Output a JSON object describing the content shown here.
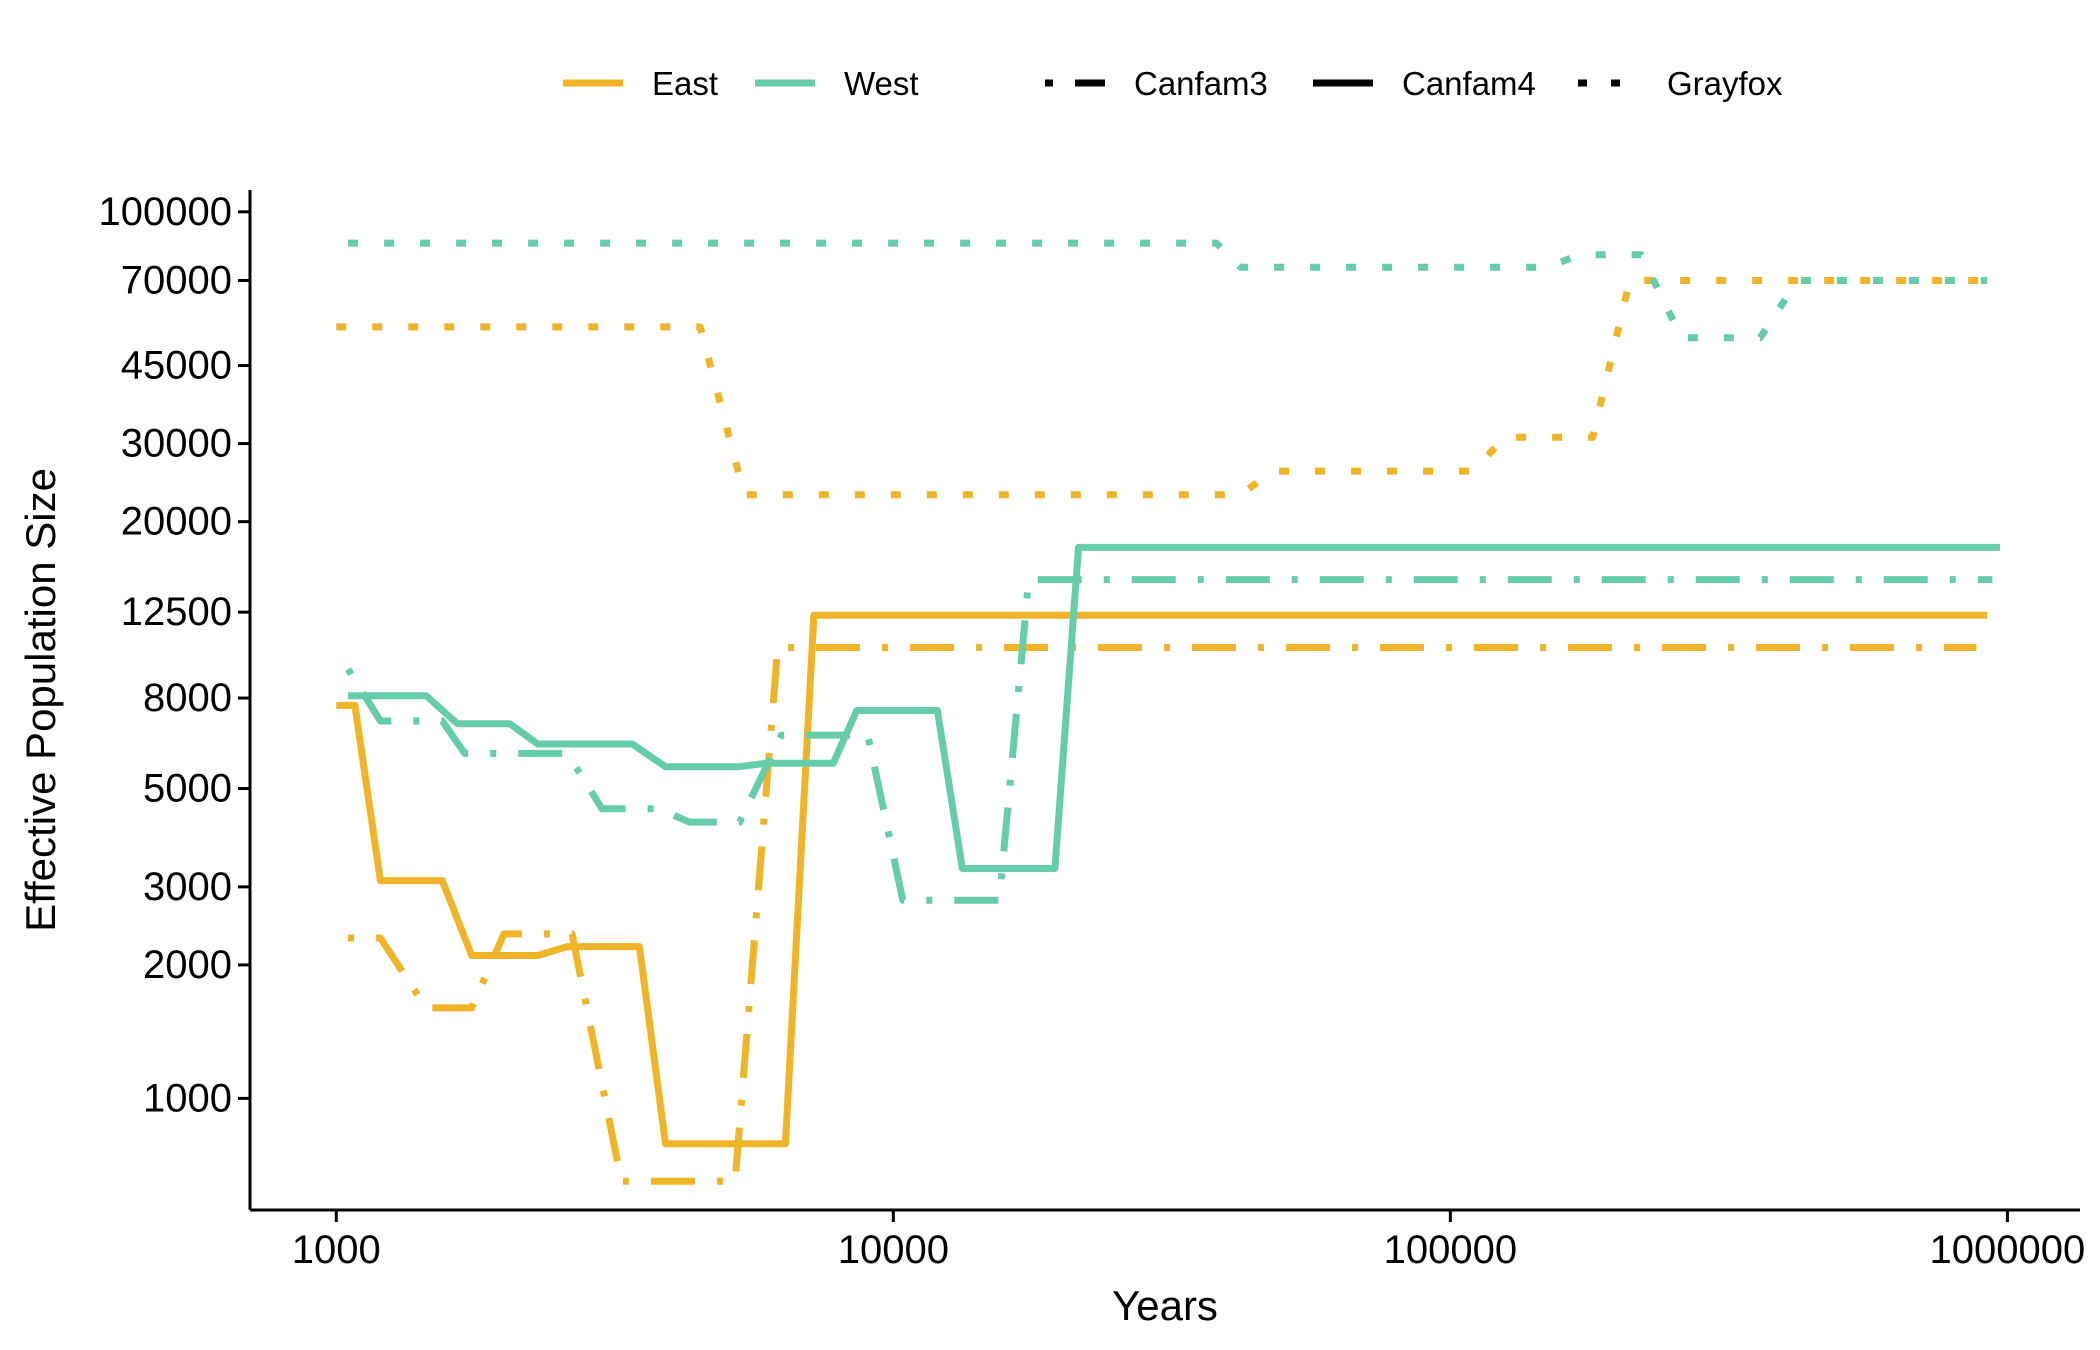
{
  "chart_data": {
    "type": "line",
    "xlabel": "Years",
    "ylabel": "Effective Population Size",
    "xscale": "log",
    "yscale": "log",
    "xlim": [
      700,
      1350000
    ],
    "ylim": [
      560,
      112000
    ],
    "x_ticks": [
      1000,
      10000,
      100000,
      1000000
    ],
    "y_ticks": [
      1000,
      2000,
      3000,
      5000,
      8000,
      12500,
      20000,
      30000,
      45000,
      70000,
      100000
    ],
    "grid": false,
    "legend_position": "top",
    "legend": {
      "color_entries": [
        {
          "label": "East",
          "color": "#F0B429"
        },
        {
          "label": "West",
          "color": "#66CDAA"
        }
      ],
      "linetype_entries": [
        {
          "label": "Canfam3",
          "linetype": "dotdash"
        },
        {
          "label": "Canfam4",
          "linetype": "solid"
        },
        {
          "label": "Grayfox",
          "linetype": "dotted"
        }
      ]
    },
    "series": [
      {
        "group": "East",
        "reference": "Canfam4",
        "color": "#F0B429",
        "linetype": "solid",
        "points": [
          [
            1000,
            7700
          ],
          [
            1080,
            7700
          ],
          [
            1200,
            3100
          ],
          [
            1550,
            3100
          ],
          [
            1750,
            2100
          ],
          [
            2300,
            2100
          ],
          [
            2600,
            2200
          ],
          [
            3500,
            2200
          ],
          [
            3900,
            790
          ],
          [
            6400,
            790
          ],
          [
            7200,
            12300
          ],
          [
            920000,
            12300
          ]
        ]
      },
      {
        "group": "East",
        "reference": "Canfam3",
        "color": "#F0B429",
        "linetype": "dotdash",
        "points": [
          [
            1050,
            2300
          ],
          [
            1200,
            2300
          ],
          [
            1450,
            1600
          ],
          [
            1750,
            1600
          ],
          [
            2000,
            2350
          ],
          [
            2650,
            2350
          ],
          [
            3250,
            650
          ],
          [
            5200,
            650
          ],
          [
            6200,
            10400
          ],
          [
            880000,
            10400
          ]
        ]
      },
      {
        "group": "East",
        "reference": "Grayfox",
        "color": "#F0B429",
        "linetype": "dotted",
        "points": [
          [
            1000,
            55000
          ],
          [
            4500,
            55000
          ],
          [
            5400,
            23000
          ],
          [
            42000,
            23000
          ],
          [
            48000,
            26000
          ],
          [
            110000,
            26000
          ],
          [
            125000,
            31000
          ],
          [
            180000,
            31000
          ],
          [
            210000,
            70000
          ],
          [
            920000,
            70000
          ]
        ]
      },
      {
        "group": "West",
        "reference": "Canfam4",
        "color": "#66CDAA",
        "linetype": "solid",
        "points": [
          [
            1050,
            8100
          ],
          [
            1450,
            8100
          ],
          [
            1650,
            7000
          ],
          [
            2050,
            7000
          ],
          [
            2300,
            6300
          ],
          [
            3400,
            6300
          ],
          [
            3900,
            5600
          ],
          [
            5300,
            5600
          ],
          [
            5900,
            5700
          ],
          [
            7800,
            5700
          ],
          [
            8600,
            7500
          ],
          [
            12000,
            7500
          ],
          [
            13300,
            3300
          ],
          [
            19500,
            3300
          ],
          [
            21500,
            17500
          ],
          [
            970000,
            17500
          ]
        ]
      },
      {
        "group": "West",
        "reference": "Canfam3",
        "color": "#66CDAA",
        "linetype": "dotdash",
        "points": [
          [
            1050,
            9300
          ],
          [
            1200,
            7100
          ],
          [
            1550,
            7100
          ],
          [
            1700,
            6000
          ],
          [
            2600,
            6000
          ],
          [
            3000,
            4500
          ],
          [
            3800,
            4500
          ],
          [
            4300,
            4200
          ],
          [
            5300,
            4200
          ],
          [
            6300,
            6600
          ],
          [
            9000,
            6600
          ],
          [
            10400,
            2800
          ],
          [
            15500,
            2800
          ],
          [
            17500,
            14800
          ],
          [
            940000,
            14800
          ]
        ]
      },
      {
        "group": "West",
        "reference": "Grayfox",
        "color": "#66CDAA",
        "linetype": "dotted",
        "points": [
          [
            1050,
            85000
          ],
          [
            38000,
            85000
          ],
          [
            42000,
            75000
          ],
          [
            150000,
            75000
          ],
          [
            170000,
            80000
          ],
          [
            220000,
            80000
          ],
          [
            260000,
            52000
          ],
          [
            360000,
            52000
          ],
          [
            420000,
            70000
          ],
          [
            920000,
            70000
          ]
        ]
      }
    ]
  }
}
